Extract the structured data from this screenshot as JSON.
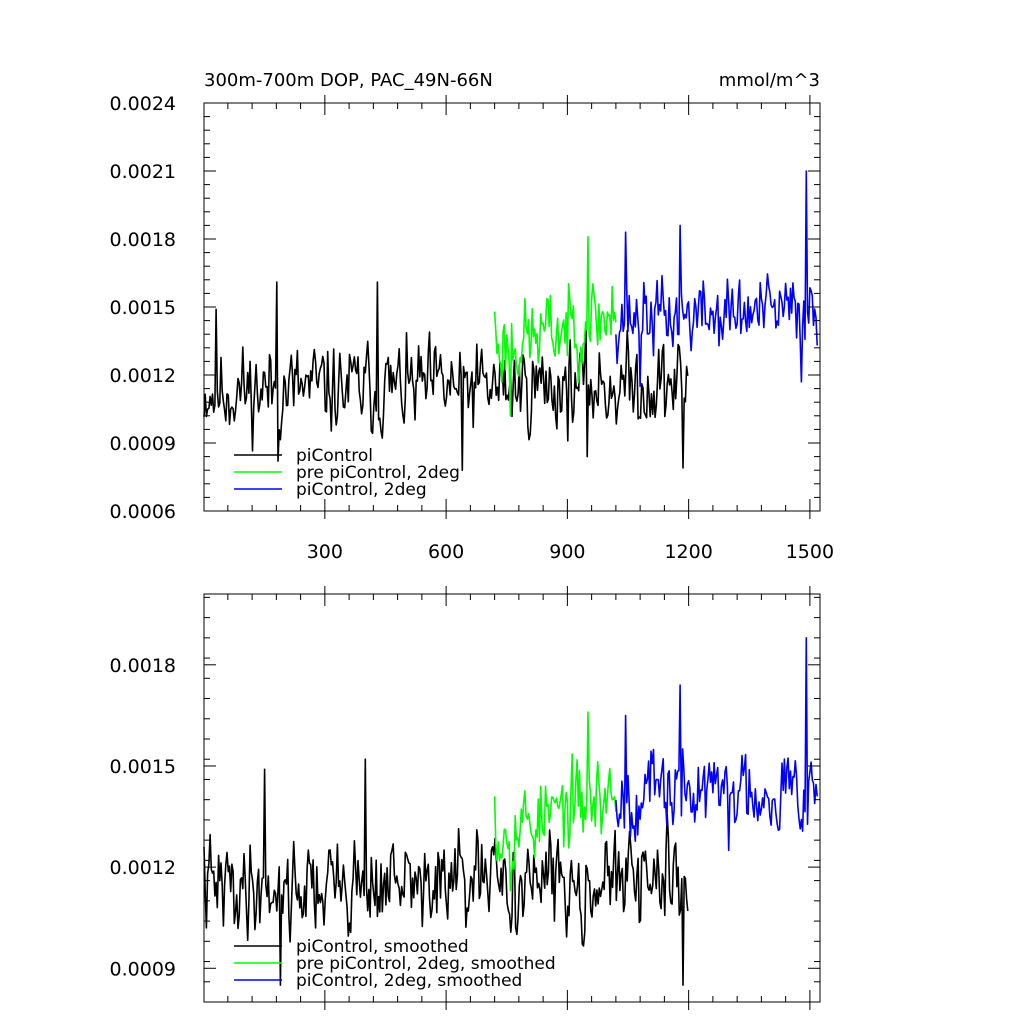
{
  "chart_data": [
    {
      "type": "line",
      "title": "300m-700m DOP, PAC_49N-66N",
      "units": "mmol/m^3",
      "xlim": [
        1,
        1525
      ],
      "ylim": [
        0.0006,
        0.0024
      ],
      "yticks": [
        "0.0006",
        "0.0009",
        "0.0012",
        "0.0015",
        "0.0018",
        "0.0021",
        "0.0024"
      ],
      "xticks": [
        "300",
        "600",
        "900",
        "1200",
        "1500"
      ],
      "legend": [
        "piControl",
        "pre piControl, 2deg",
        "piControl, 2deg"
      ],
      "series": [
        {
          "name": "piControl",
          "color": "#000000",
          "x_start": 1,
          "x_end": 1200,
          "mean": 0.00113,
          "trend": 3e-05,
          "noise": 0.00013,
          "seed": 11,
          "peaks": [
            [
              30,
              0.00149
            ],
            [
              180,
              0.00161
            ],
            [
              185,
              0.00082
            ],
            [
              430,
              0.00161
            ],
            [
              640,
              0.00078
            ],
            [
              950,
              0.00084
            ],
            [
              1185,
              0.00079
            ]
          ]
        },
        {
          "name": "pre piControl, 2deg",
          "color": "#00ff00",
          "x_start": 720,
          "x_end": 1020,
          "mean": 0.00132,
          "trend": 0.00015,
          "noise": 0.00012,
          "seed": 23,
          "peaks": [
            [
              720,
              0.00148
            ],
            [
              760,
              0.00102
            ],
            [
              950,
              0.00181
            ],
            [
              1010,
              0.00159
            ]
          ]
        },
        {
          "name": "piControl, 2deg",
          "color": "#0000ff",
          "x_start": 1020,
          "x_end": 1520,
          "mean": 0.00145,
          "trend": 3e-05,
          "noise": 0.00011,
          "seed": 37,
          "peaks": [
            [
              1045,
              0.00183
            ],
            [
              1080,
              0.00115
            ],
            [
              1180,
              0.00186
            ],
            [
              1480,
              0.00117
            ],
            [
              1490,
              0.0021
            ],
            [
              1520,
              0.00133
            ]
          ]
        }
      ]
    },
    {
      "type": "line",
      "title": "",
      "xlim": [
        1,
        1525
      ],
      "ylim": [
        0.0008,
        0.00201
      ],
      "yticks": [
        "0.0009",
        "0.0012",
        "0.0015",
        "0.0018"
      ],
      "xticks": [],
      "legend": [
        "piControl, smoothed",
        "pre piControl, 2deg, smoothed",
        "piControl, 2deg, smoothed"
      ],
      "series": [
        {
          "name": "piControl, smoothed",
          "color": "#000000",
          "x_start": 1,
          "x_end": 1200,
          "mean": 0.00114,
          "trend": 2e-05,
          "noise": 9e-05,
          "seed": 41,
          "peaks": [
            [
              1,
              0.00126
            ],
            [
              150,
              0.00149
            ],
            [
              190,
              0.00085
            ],
            [
              400,
              0.00152
            ],
            [
              1185,
              0.00085
            ],
            [
              1200,
              0.00107
            ]
          ]
        },
        {
          "name": "pre piControl, 2deg, smoothed",
          "color": "#00ff00",
          "x_start": 720,
          "x_end": 1020,
          "mean": 0.0013,
          "trend": 0.00012,
          "noise": 8e-05,
          "seed": 53,
          "peaks": [
            [
              720,
              0.00141
            ],
            [
              760,
              0.00113
            ],
            [
              950,
              0.00166
            ],
            [
              1010,
              0.0014
            ]
          ]
        },
        {
          "name": "piControl, 2deg, smoothed",
          "color": "#0000ff",
          "x_start": 1020,
          "x_end": 1520,
          "mean": 0.00142,
          "trend": 2e-05,
          "noise": 8e-05,
          "seed": 67,
          "peaks": [
            [
              1045,
              0.00165
            ],
            [
              1180,
              0.00174
            ],
            [
              1300,
              0.00125
            ],
            [
              1490,
              0.00188
            ],
            [
              1520,
              0.00141
            ]
          ]
        }
      ]
    }
  ]
}
